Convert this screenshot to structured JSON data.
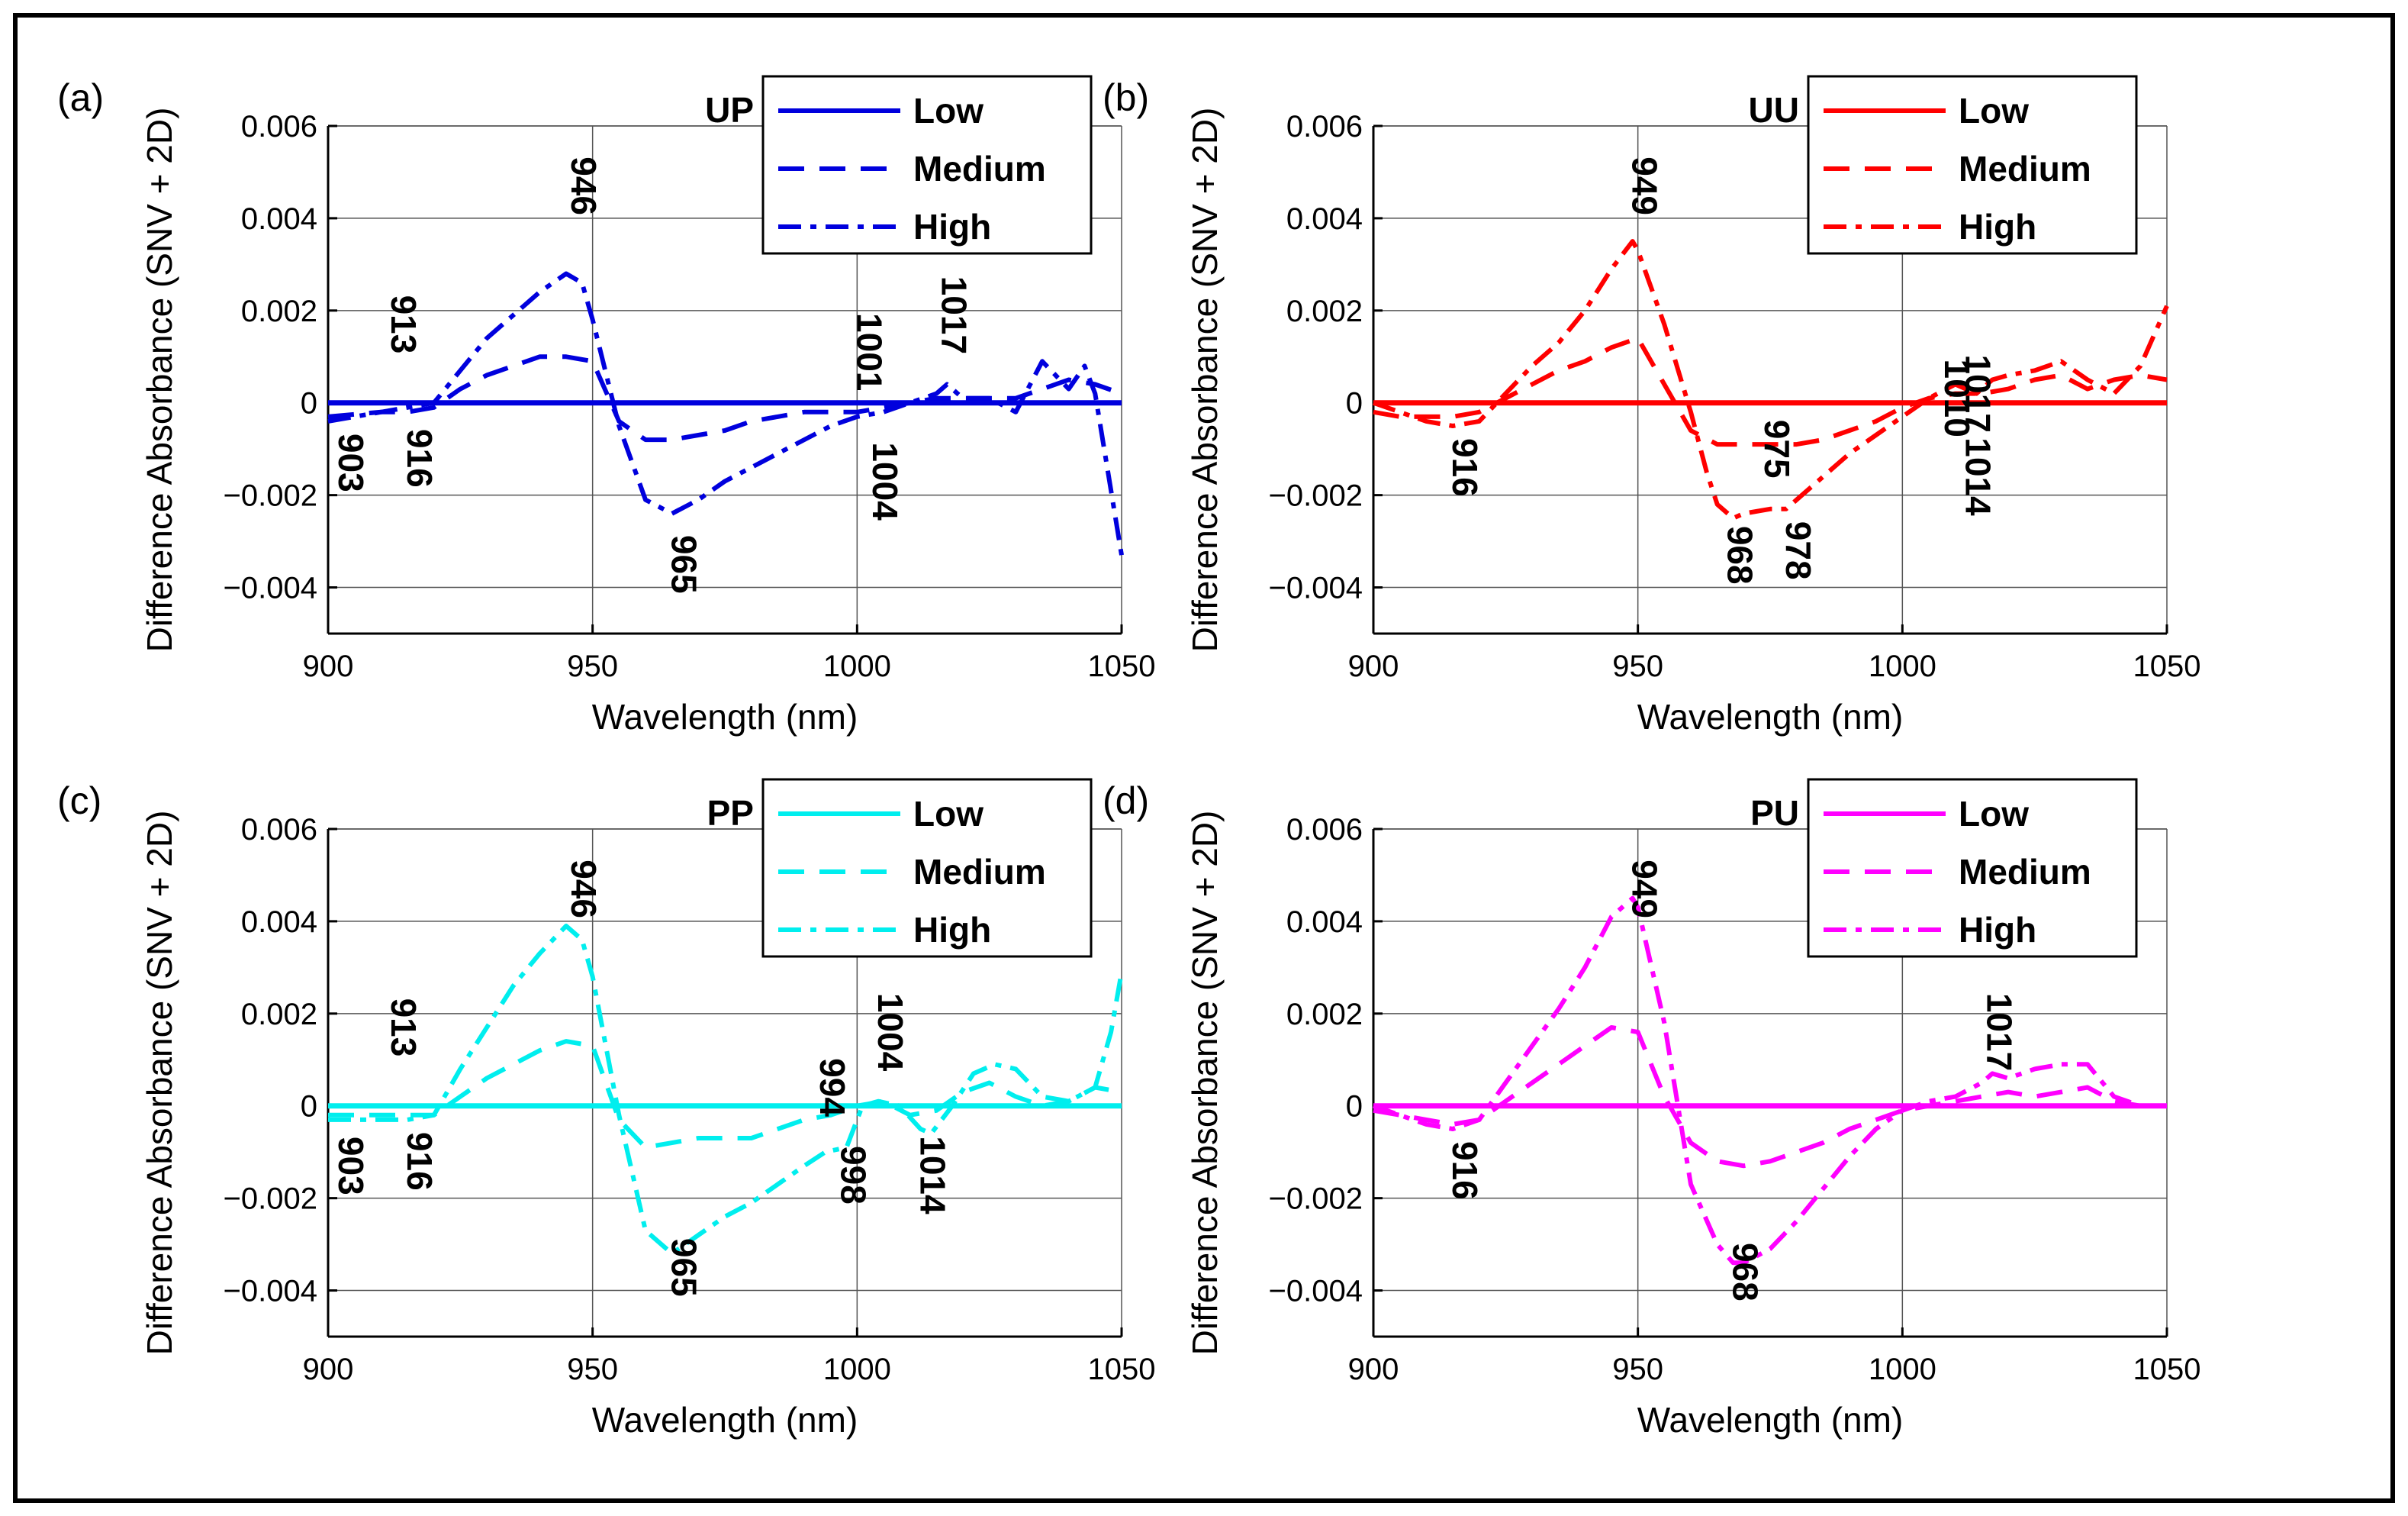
{
  "chart_data": [
    {
      "type": "line",
      "panel_label": "(a)",
      "title": "UP",
      "color": "#0000dd",
      "xlabel": "Wavelength (nm)",
      "ylabel": "Difference Absorbance (SNV + 2D)",
      "xlim": [
        900,
        1050
      ],
      "ylim": [
        -0.005,
        0.006
      ],
      "xticks": [
        900,
        950,
        1000,
        1050
      ],
      "xtick_labels": [
        "900",
        "950",
        "1000",
        "1050"
      ],
      "yticks": [
        -0.004,
        -0.002,
        0,
        0.002,
        0.004,
        0.006
      ],
      "ytick_labels": [
        "−0.004",
        "−0.002",
        "0",
        "0.002",
        "0.004",
        "0.006"
      ],
      "legend": [
        "Low",
        "Medium",
        "High"
      ],
      "legend_position": "top-right",
      "series": [
        {
          "name": "Low",
          "x": [
            900,
            1050
          ],
          "y": [
            0,
            0
          ]
        },
        {
          "name": "Medium",
          "x": [
            900,
            905,
            910,
            915,
            920,
            925,
            930,
            935,
            940,
            945,
            950,
            955,
            960,
            965,
            970,
            975,
            980,
            985,
            990,
            995,
            1000,
            1005,
            1010,
            1015,
            1020,
            1025,
            1030,
            1035,
            1040,
            1045,
            1050
          ],
          "y": [
            -0.0003,
            -0.00025,
            -0.0002,
            -0.0002,
            -0.0001,
            0.0003,
            0.0006,
            0.0008,
            0.001,
            0.001,
            0.0009,
            -0.0004,
            -0.0008,
            -0.0008,
            -0.0007,
            -0.0006,
            -0.0004,
            -0.0003,
            -0.0002,
            -0.0002,
            -0.0002,
            -0.0001,
            0,
            0.0001,
            0.0001,
            0.0001,
            0.0001,
            0.0003,
            0.0005,
            0.0004,
            0.0002
          ]
        },
        {
          "name": "High",
          "x": [
            900,
            905,
            910,
            915,
            920,
            925,
            930,
            935,
            940,
            945,
            948,
            950,
            955,
            960,
            965,
            970,
            975,
            980,
            985,
            990,
            995,
            1000,
            1005,
            1010,
            1015,
            1017,
            1020,
            1025,
            1030,
            1035,
            1040,
            1043,
            1045,
            1050
          ],
          "y": [
            -0.0004,
            -0.0003,
            -0.0002,
            -0.0001,
            0,
            0.0007,
            0.0014,
            0.0019,
            0.0024,
            0.0028,
            0.0026,
            0.0018,
            -0.0005,
            -0.0021,
            -0.0024,
            -0.0021,
            -0.0017,
            -0.0014,
            -0.0011,
            -0.0008,
            -0.0005,
            -0.0003,
            -0.0002,
            0,
            0.0002,
            0.0004,
            0.0001,
            0.0001,
            -0.0002,
            0.0009,
            0.0003,
            0.0008,
            0.0002,
            -0.0033
          ]
        }
      ],
      "annotations": [
        {
          "text": "946",
          "x": 946,
          "y": 0.0047
        },
        {
          "text": "913",
          "x": 912,
          "y": 0.0017
        },
        {
          "text": "903",
          "x": 902,
          "y": -0.0013
        },
        {
          "text": "916",
          "x": 915,
          "y": -0.0012
        },
        {
          "text": "965",
          "x": 965,
          "y": -0.0035
        },
        {
          "text": "1001",
          "x": 1000,
          "y": 0.0011
        },
        {
          "text": "1004",
          "x": 1003,
          "y": -0.0017
        },
        {
          "text": "1017",
          "x": 1016,
          "y": 0.0019
        }
      ]
    },
    {
      "type": "line",
      "panel_label": "(b)",
      "title": "UU",
      "color": "#ff0000",
      "xlabel": "Wavelength (nm)",
      "ylabel": "Difference Absorbance (SNV + 2D)",
      "xlim": [
        900,
        1050
      ],
      "ylim": [
        -0.005,
        0.006
      ],
      "xticks": [
        900,
        950,
        1000,
        1050
      ],
      "xtick_labels": [
        "900",
        "950",
        "1000",
        "1050"
      ],
      "yticks": [
        -0.004,
        -0.002,
        0,
        0.002,
        0.004,
        0.006
      ],
      "ytick_labels": [
        "−0.004",
        "−0.002",
        "0",
        "0.002",
        "0.004",
        "0.006"
      ],
      "legend": [
        "Low",
        "Medium",
        "High"
      ],
      "legend_position": "top-right",
      "series": [
        {
          "name": "Low",
          "x": [
            900,
            1050
          ],
          "y": [
            0,
            0
          ]
        },
        {
          "name": "Medium",
          "x": [
            900,
            905,
            910,
            915,
            920,
            925,
            930,
            935,
            940,
            945,
            950,
            955,
            960,
            965,
            970,
            975,
            980,
            985,
            990,
            995,
            1000,
            1005,
            1010,
            1015,
            1020,
            1025,
            1030,
            1035,
            1040,
            1045,
            1050
          ],
          "y": [
            -0.0002,
            -0.0003,
            -0.0003,
            -0.0003,
            -0.0002,
            0.0001,
            0.0004,
            0.0007,
            0.0009,
            0.0012,
            0.0014,
            0.0004,
            -0.0006,
            -0.0009,
            -0.0009,
            -0.0009,
            -0.0009,
            -0.0008,
            -0.0006,
            -0.0004,
            -0.0001,
            0.0001,
            0.0002,
            0.0002,
            0.0003,
            0.0005,
            0.0006,
            0.0003,
            0.0005,
            0.0006,
            0.0005
          ]
        },
        {
          "name": "High",
          "x": [
            900,
            905,
            910,
            915,
            920,
            925,
            930,
            935,
            940,
            945,
            949,
            950,
            955,
            960,
            963,
            965,
            968,
            970,
            975,
            978,
            980,
            985,
            990,
            995,
            1000,
            1005,
            1010,
            1014,
            1017,
            1020,
            1025,
            1030,
            1035,
            1040,
            1045,
            1050
          ],
          "y": [
            0,
            -0.0002,
            -0.0004,
            -0.0005,
            -0.0004,
            0.0002,
            0.0008,
            0.0013,
            0.002,
            0.0029,
            0.0035,
            0.0033,
            0.0017,
            -0.0002,
            -0.0015,
            -0.0022,
            -0.0025,
            -0.0024,
            -0.0023,
            -0.0023,
            -0.0021,
            -0.0016,
            -0.0011,
            -0.0007,
            -0.0003,
            0.0001,
            0.0004,
            0.0002,
            0.0005,
            0.0006,
            0.0007,
            0.0009,
            0.0005,
            0.0002,
            0.0008,
            0.0021
          ]
        }
      ],
      "annotations": [
        {
          "text": "949",
          "x": 949,
          "y": 0.0047
        },
        {
          "text": "916",
          "x": 915,
          "y": -0.0014
        },
        {
          "text": "975",
          "x": 974,
          "y": -0.001
        },
        {
          "text": "968",
          "x": 967,
          "y": -0.0033
        },
        {
          "text": "978",
          "x": 978,
          "y": -0.0032
        },
        {
          "text": "1010",
          "x": 1008,
          "y": 0.0001
        },
        {
          "text": "1017",
          "x": 1012,
          "y": 0.0002
        },
        {
          "text": "1014",
          "x": 1012,
          "y": -0.0016
        }
      ]
    },
    {
      "type": "line",
      "panel_label": "(c)",
      "title": "PP",
      "color": "#00eeee",
      "xlabel": "Wavelength (nm)",
      "ylabel": "Difference Absorbance (SNV + 2D)",
      "xlim": [
        900,
        1050
      ],
      "ylim": [
        -0.005,
        0.006
      ],
      "xticks": [
        900,
        950,
        1000,
        1050
      ],
      "xtick_labels": [
        "900",
        "950",
        "1000",
        "1050"
      ],
      "yticks": [
        -0.004,
        -0.002,
        0,
        0.002,
        0.004,
        0.006
      ],
      "ytick_labels": [
        "−0.004",
        "−0.002",
        "0",
        "0.002",
        "0.004",
        "0.006"
      ],
      "legend": [
        "Low",
        "Medium",
        "High"
      ],
      "legend_position": "top-right",
      "series": [
        {
          "name": "Low",
          "x": [
            900,
            1050
          ],
          "y": [
            0,
            0
          ]
        },
        {
          "name": "Medium",
          "x": [
            900,
            905,
            910,
            915,
            920,
            925,
            930,
            935,
            940,
            945,
            950,
            955,
            960,
            965,
            970,
            975,
            980,
            985,
            990,
            995,
            1000,
            1005,
            1010,
            1015,
            1020,
            1025,
            1030,
            1035,
            1040,
            1045,
            1050
          ],
          "y": [
            -0.0002,
            -0.0002,
            -0.0002,
            -0.0002,
            -0.0002,
            0.0002,
            0.0006,
            0.0009,
            0.0012,
            0.0014,
            0.0013,
            -0.0003,
            -0.0009,
            -0.0008,
            -0.0007,
            -0.0007,
            -0.0007,
            -0.0005,
            -0.0003,
            -0.0002,
            0,
            0.0001,
            -0.0002,
            -0.0001,
            0.0003,
            0.0005,
            0.0002,
            0,
            0.0001,
            0.0004,
            0.0003
          ]
        },
        {
          "name": "High",
          "x": [
            900,
            905,
            910,
            915,
            920,
            925,
            930,
            935,
            940,
            945,
            948,
            950,
            955,
            960,
            965,
            970,
            975,
            980,
            985,
            990,
            994,
            998,
            1001,
            1004,
            1008,
            1012,
            1014,
            1018,
            1022,
            1026,
            1030,
            1035,
            1040,
            1045,
            1048,
            1050
          ],
          "y": [
            -0.0003,
            -0.0003,
            -0.0003,
            -0.0003,
            -0.0002,
            0.0008,
            0.0017,
            0.0026,
            0.0033,
            0.0039,
            0.0036,
            0.0028,
            -0.0002,
            -0.0027,
            -0.0032,
            -0.0028,
            -0.0024,
            -0.0021,
            -0.0017,
            -0.0013,
            -0.001,
            -0.0009,
            0,
            0.0001,
            0,
            -0.0005,
            -0.0006,
            0,
            0.0007,
            0.0009,
            0.0008,
            0.0002,
            0.0001,
            0.0004,
            0.0016,
            0.0029
          ]
        }
      ],
      "annotations": [
        {
          "text": "946",
          "x": 946,
          "y": 0.0047
        },
        {
          "text": "913",
          "x": 912,
          "y": 0.0017
        },
        {
          "text": "903",
          "x": 902,
          "y": -0.0013
        },
        {
          "text": "916",
          "x": 915,
          "y": -0.0012
        },
        {
          "text": "965",
          "x": 965,
          "y": -0.0035
        },
        {
          "text": "994",
          "x": 993,
          "y": 0.0004
        },
        {
          "text": "998",
          "x": 997,
          "y": -0.0015
        },
        {
          "text": "1004",
          "x": 1004,
          "y": 0.0016
        },
        {
          "text": "1014",
          "x": 1012,
          "y": -0.0015
        }
      ]
    },
    {
      "type": "line",
      "panel_label": "(d)",
      "title": "PU",
      "color": "#ff00ff",
      "xlabel": "Wavelength (nm)",
      "ylabel": "Difference Absorbance (SNV + 2D)",
      "xlim": [
        900,
        1050
      ],
      "ylim": [
        -0.005,
        0.006
      ],
      "xticks": [
        900,
        950,
        1000,
        1050
      ],
      "xtick_labels": [
        "900",
        "950",
        "1000",
        "1050"
      ],
      "yticks": [
        -0.004,
        -0.002,
        0,
        0.002,
        0.004,
        0.006
      ],
      "ytick_labels": [
        "−0.004",
        "−0.002",
        "0",
        "0.002",
        "0.004",
        "0.006"
      ],
      "legend": [
        "Low",
        "Medium",
        "High"
      ],
      "legend_position": "top-right",
      "series": [
        {
          "name": "Low",
          "x": [
            900,
            1050
          ],
          "y": [
            0,
            0
          ]
        },
        {
          "name": "Medium",
          "x": [
            900,
            905,
            910,
            915,
            920,
            925,
            930,
            935,
            940,
            945,
            950,
            955,
            960,
            965,
            970,
            975,
            980,
            985,
            990,
            995,
            1000,
            1005,
            1010,
            1015,
            1020,
            1025,
            1030,
            1035,
            1040,
            1045,
            1050
          ],
          "y": [
            -0.0001,
            -0.0002,
            -0.0003,
            -0.0004,
            -0.0003,
            0.0001,
            0.0005,
            0.0009,
            0.0013,
            0.0017,
            0.0016,
            0.0002,
            -0.0008,
            -0.0012,
            -0.0013,
            -0.0012,
            -0.001,
            -0.0008,
            -0.0005,
            -0.0003,
            -0.0001,
            0,
            0.0001,
            0.0002,
            0.0003,
            0.0002,
            0.0003,
            0.0004,
            0.0001,
            0,
            0
          ]
        },
        {
          "name": "High",
          "x": [
            900,
            905,
            910,
            915,
            920,
            925,
            930,
            935,
            940,
            945,
            949,
            950,
            955,
            960,
            965,
            968,
            970,
            975,
            980,
            985,
            990,
            995,
            1000,
            1005,
            1010,
            1015,
            1017,
            1020,
            1025,
            1030,
            1035,
            1040,
            1045,
            1050
          ],
          "y": [
            0,
            -0.0002,
            -0.0004,
            -0.0005,
            -0.0003,
            0.0005,
            0.0013,
            0.0021,
            0.003,
            0.0041,
            0.0045,
            0.0043,
            0.0018,
            -0.0017,
            -0.003,
            -0.0034,
            -0.0034,
            -0.0031,
            -0.0025,
            -0.0018,
            -0.0011,
            -0.0005,
            -0.0001,
            0.0001,
            0.0002,
            0.0005,
            0.0007,
            0.0006,
            0.0008,
            0.0009,
            0.0009,
            0.0002,
            0,
            0
          ]
        }
      ],
      "annotations": [
        {
          "text": "949",
          "x": 949,
          "y": 0.0047
        },
        {
          "text": "916",
          "x": 915,
          "y": -0.0014
        },
        {
          "text": "968",
          "x": 968,
          "y": -0.0036
        },
        {
          "text": "1017",
          "x": 1016,
          "y": 0.0016
        }
      ]
    }
  ]
}
